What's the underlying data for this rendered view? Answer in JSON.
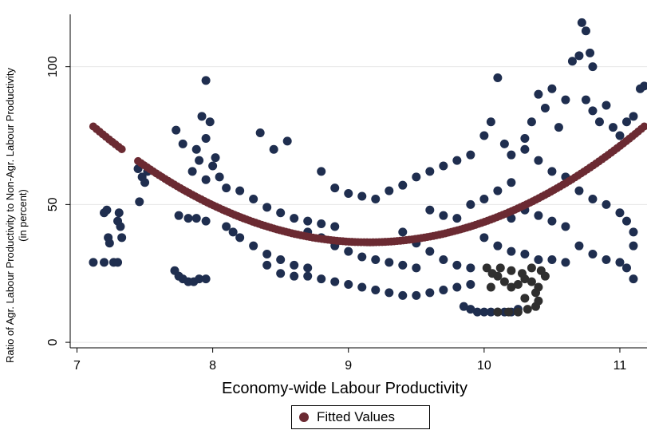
{
  "chart_data": {
    "type": "scatter",
    "title": "",
    "xlabel": "Economy-wide Labour Productivity",
    "ylabel": "Ratio of Agr. Labour Productivity to Non-Agr. Labour Productivity",
    "ylabel_sub": "(in percent)",
    "xlim": [
      6.95,
      11.2
    ],
    "ylim": [
      -2,
      119
    ],
    "xticks": [
      7,
      8,
      9,
      10,
      11
    ],
    "yticks": [
      0,
      50,
      100
    ],
    "grid": true,
    "legend_position": "bottom-center",
    "series": [
      {
        "name": "",
        "color": "#1f2e4f",
        "points": [
          [
            7.12,
            29
          ],
          [
            7.2,
            47
          ],
          [
            7.22,
            48
          ],
          [
            7.23,
            38
          ],
          [
            7.24,
            36
          ],
          [
            7.2,
            29
          ],
          [
            7.27,
            29
          ],
          [
            7.3,
            29
          ],
          [
            7.31,
            47
          ],
          [
            7.3,
            44
          ],
          [
            7.32,
            42
          ],
          [
            7.33,
            38
          ],
          [
            7.45,
            63
          ],
          [
            7.48,
            60
          ],
          [
            7.5,
            58
          ],
          [
            7.52,
            62
          ],
          [
            7.46,
            51
          ],
          [
            7.72,
            26
          ],
          [
            7.75,
            24
          ],
          [
            7.78,
            23
          ],
          [
            7.82,
            22
          ],
          [
            7.86,
            22
          ],
          [
            7.9,
            23
          ],
          [
            7.95,
            23
          ],
          [
            7.75,
            46
          ],
          [
            7.82,
            45
          ],
          [
            7.88,
            45
          ],
          [
            7.95,
            44
          ],
          [
            7.95,
            95
          ],
          [
            7.92,
            82
          ],
          [
            7.98,
            80
          ],
          [
            7.73,
            77
          ],
          [
            7.78,
            72
          ],
          [
            7.88,
            70
          ],
          [
            7.95,
            74
          ],
          [
            7.9,
            66
          ],
          [
            8.0,
            64
          ],
          [
            8.05,
            60
          ],
          [
            8.1,
            56
          ],
          [
            7.85,
            62
          ],
          [
            7.95,
            59
          ],
          [
            8.02,
            67
          ],
          [
            8.1,
            42
          ],
          [
            8.15,
            40
          ],
          [
            8.2,
            38
          ],
          [
            8.3,
            35
          ],
          [
            8.4,
            32
          ],
          [
            8.5,
            30
          ],
          [
            8.6,
            28
          ],
          [
            8.7,
            27
          ],
          [
            8.2,
            55
          ],
          [
            8.3,
            52
          ],
          [
            8.4,
            49
          ],
          [
            8.5,
            47
          ],
          [
            8.6,
            45
          ],
          [
            8.7,
            44
          ],
          [
            8.8,
            43
          ],
          [
            8.9,
            42
          ],
          [
            8.35,
            76
          ],
          [
            8.45,
            70
          ],
          [
            8.55,
            73
          ],
          [
            8.8,
            62
          ],
          [
            8.9,
            56
          ],
          [
            9.0,
            54
          ],
          [
            9.1,
            53
          ],
          [
            9.2,
            52
          ],
          [
            8.4,
            28
          ],
          [
            8.5,
            25
          ],
          [
            8.6,
            24
          ],
          [
            8.7,
            24
          ],
          [
            8.8,
            23
          ],
          [
            8.9,
            22
          ],
          [
            9.0,
            21
          ],
          [
            9.1,
            20
          ],
          [
            9.2,
            19
          ],
          [
            8.7,
            40
          ],
          [
            8.8,
            38
          ],
          [
            8.9,
            35
          ],
          [
            9.0,
            33
          ],
          [
            9.1,
            31
          ],
          [
            9.2,
            30
          ],
          [
            9.3,
            29
          ],
          [
            9.4,
            28
          ],
          [
            9.5,
            27
          ],
          [
            9.3,
            55
          ],
          [
            9.4,
            57
          ],
          [
            9.5,
            60
          ],
          [
            9.6,
            62
          ],
          [
            9.7,
            64
          ],
          [
            9.8,
            66
          ],
          [
            9.9,
            68
          ],
          [
            9.3,
            18
          ],
          [
            9.4,
            17
          ],
          [
            9.5,
            17
          ],
          [
            9.6,
            18
          ],
          [
            9.7,
            19
          ],
          [
            9.8,
            20
          ],
          [
            9.9,
            21
          ],
          [
            9.4,
            40
          ],
          [
            9.5,
            36
          ],
          [
            9.6,
            33
          ],
          [
            9.7,
            30
          ],
          [
            9.8,
            28
          ],
          [
            9.9,
            27
          ],
          [
            9.6,
            48
          ],
          [
            9.7,
            46
          ],
          [
            9.8,
            45
          ],
          [
            9.9,
            50
          ],
          [
            10.0,
            52
          ],
          [
            10.1,
            55
          ],
          [
            10.2,
            58
          ],
          [
            9.85,
            13
          ],
          [
            9.9,
            12
          ],
          [
            9.95,
            11
          ],
          [
            10.0,
            11
          ],
          [
            10.05,
            11
          ],
          [
            10.1,
            11
          ],
          [
            10.15,
            11
          ],
          [
            10.2,
            11
          ],
          [
            10.25,
            12
          ],
          [
            10.0,
            38
          ],
          [
            10.1,
            35
          ],
          [
            10.2,
            33
          ],
          [
            10.3,
            32
          ],
          [
            10.4,
            30
          ],
          [
            10.5,
            30
          ],
          [
            10.6,
            29
          ],
          [
            10.0,
            75
          ],
          [
            10.05,
            80
          ],
          [
            10.1,
            96
          ],
          [
            10.15,
            72
          ],
          [
            10.2,
            68
          ],
          [
            10.3,
            74
          ],
          [
            10.35,
            80
          ],
          [
            10.4,
            90
          ],
          [
            10.45,
            85
          ],
          [
            10.5,
            92
          ],
          [
            10.55,
            78
          ],
          [
            10.6,
            88
          ],
          [
            10.65,
            102
          ],
          [
            10.7,
            104
          ],
          [
            10.72,
            116
          ],
          [
            10.75,
            113
          ],
          [
            10.78,
            105
          ],
          [
            10.8,
            100
          ],
          [
            10.75,
            88
          ],
          [
            10.8,
            84
          ],
          [
            10.85,
            80
          ],
          [
            10.9,
            86
          ],
          [
            10.95,
            78
          ],
          [
            11.0,
            75
          ],
          [
            11.05,
            80
          ],
          [
            11.1,
            82
          ],
          [
            11.15,
            92
          ],
          [
            11.18,
            93
          ],
          [
            10.6,
            60
          ],
          [
            10.7,
            55
          ],
          [
            10.8,
            52
          ],
          [
            10.9,
            50
          ],
          [
            11.0,
            47
          ],
          [
            11.05,
            44
          ],
          [
            11.1,
            40
          ],
          [
            10.7,
            35
          ],
          [
            10.8,
            32
          ],
          [
            10.9,
            30
          ],
          [
            11.0,
            29
          ],
          [
            11.05,
            27
          ],
          [
            11.1,
            23
          ],
          [
            11.1,
            35
          ],
          [
            10.2,
            45
          ],
          [
            10.3,
            48
          ],
          [
            10.4,
            46
          ],
          [
            10.5,
            44
          ],
          [
            10.6,
            42
          ],
          [
            10.5,
            62
          ],
          [
            10.4,
            66
          ],
          [
            10.3,
            70
          ]
        ]
      },
      {
        "name": "",
        "color": "#2f2f2f",
        "points": [
          [
            10.02,
            27
          ],
          [
            10.06,
            25
          ],
          [
            10.1,
            24
          ],
          [
            10.15,
            22
          ],
          [
            10.2,
            20
          ],
          [
            10.25,
            21
          ],
          [
            10.3,
            23
          ],
          [
            10.35,
            22
          ],
          [
            10.38,
            18
          ],
          [
            10.4,
            15
          ],
          [
            10.38,
            13
          ],
          [
            10.32,
            12
          ],
          [
            10.25,
            11
          ],
          [
            10.18,
            11
          ],
          [
            10.1,
            11
          ],
          [
            10.05,
            20
          ],
          [
            10.12,
            27
          ],
          [
            10.2,
            26
          ],
          [
            10.28,
            25
          ],
          [
            10.35,
            27
          ],
          [
            10.42,
            26
          ],
          [
            10.45,
            24
          ],
          [
            10.4,
            20
          ],
          [
            10.3,
            16
          ]
        ]
      },
      {
        "name": "Fitted Values",
        "color": "#6b2a32",
        "curve": {
          "type": "quadratic",
          "a": 10.2,
          "vertex_x": 9.15,
          "vertex_y": 36.3
        },
        "domain_segments": [
          [
            7.12,
            7.33
          ],
          [
            7.45,
            11.18
          ]
        ]
      }
    ]
  }
}
